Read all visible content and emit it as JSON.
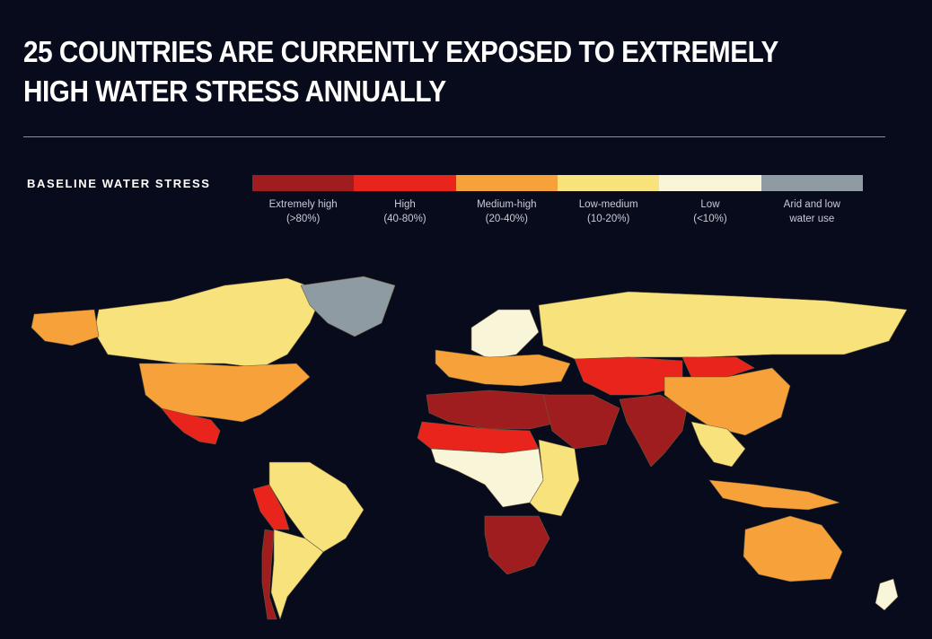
{
  "title": "25 COUNTRIES ARE CURRENTLY EXPOSED TO EXTREMELY HIGH WATER STRESS ANNUALLY",
  "legend": {
    "title": "BASELINE WATER STRESS",
    "items": [
      {
        "label": "Extremely high\n(>80%)",
        "color": "#a01d1f"
      },
      {
        "label": "High\n(40-80%)",
        "color": "#e8241c"
      },
      {
        "label": "Medium-high\n(20-40%)",
        "color": "#f7a13a"
      },
      {
        "label": "Low-medium\n(10-20%)",
        "color": "#f8e27c"
      },
      {
        "label": "Low\n(<10%)",
        "color": "#f8f5d8"
      },
      {
        "label": "Arid and low\nwater use",
        "color": "#8e9ba3"
      }
    ]
  },
  "colors": {
    "background": "#080b1c",
    "land_none": "#1a2536"
  },
  "map_regions": [
    {
      "name": "canada",
      "category": "Low-medium"
    },
    {
      "name": "alaska",
      "category": "Medium-high"
    },
    {
      "name": "usa",
      "category": "Medium-high"
    },
    {
      "name": "mexico",
      "category": "High"
    },
    {
      "name": "south-america-east",
      "category": "Low-medium"
    },
    {
      "name": "peru-bolivia",
      "category": "High"
    },
    {
      "name": "chile",
      "category": "Extremely high"
    },
    {
      "name": "argentina",
      "category": "Low-medium"
    },
    {
      "name": "europe-north",
      "category": "Low"
    },
    {
      "name": "europe-south",
      "category": "Medium-high"
    },
    {
      "name": "north-africa",
      "category": "Extremely high"
    },
    {
      "name": "sahel",
      "category": "High"
    },
    {
      "name": "central-africa",
      "category": "Low"
    },
    {
      "name": "east-africa",
      "category": "Low-medium"
    },
    {
      "name": "southern-africa",
      "category": "Extremely high"
    },
    {
      "name": "middle-east",
      "category": "Extremely high"
    },
    {
      "name": "russia",
      "category": "Low-medium"
    },
    {
      "name": "central-asia",
      "category": "High"
    },
    {
      "name": "india",
      "category": "Extremely high"
    },
    {
      "name": "china",
      "category": "Medium-high"
    },
    {
      "name": "mongolia",
      "category": "High"
    },
    {
      "name": "southeast-asia",
      "category": "Low-medium"
    },
    {
      "name": "indonesia",
      "category": "Medium-high"
    },
    {
      "name": "australia",
      "category": "Medium-high"
    },
    {
      "name": "greenland",
      "category": "Arid and low water use"
    },
    {
      "name": "new-zealand",
      "category": "Low"
    }
  ]
}
